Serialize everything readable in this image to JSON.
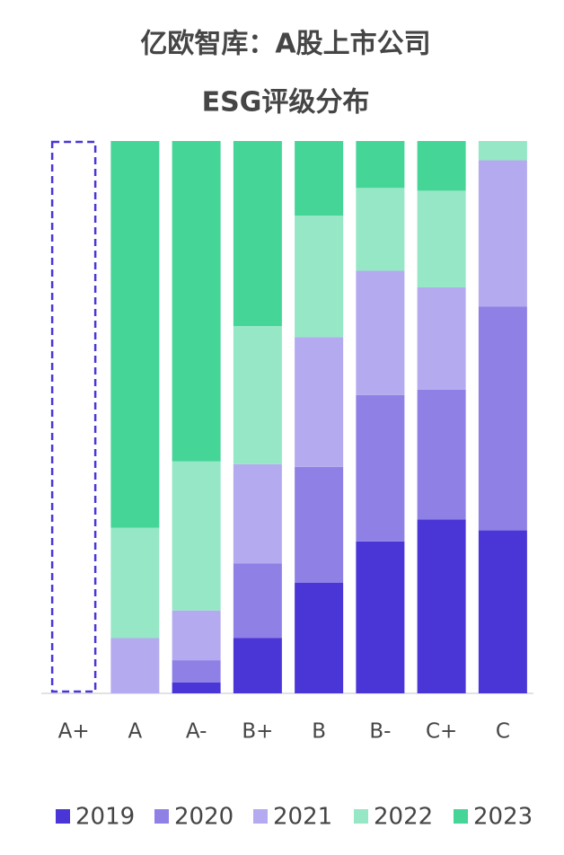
{
  "chart_data": {
    "type": "stacked_bar",
    "title": [
      "亿欧智库：A股上市公司",
      "ESG评级分布"
    ],
    "categories": [
      "A+",
      "A",
      "A-",
      "B+",
      "B",
      "B-",
      "C+",
      "C"
    ],
    "ylim": [
      0,
      100
    ],
    "series": [
      {
        "name": "2019",
        "color": "#4a36d6",
        "values": [
          null,
          0,
          2,
          10,
          20,
          27.5,
          31.5,
          29.5
        ]
      },
      {
        "name": "2020",
        "color": "#8f80e6",
        "values": [
          null,
          0,
          4,
          13.5,
          21,
          26.5,
          23.5,
          40.5
        ]
      },
      {
        "name": "2021",
        "color": "#b4aaef",
        "values": [
          null,
          10,
          9,
          18,
          23.5,
          22.5,
          18.5,
          26.5
        ]
      },
      {
        "name": "2022",
        "color": "#95e7c6",
        "values": [
          null,
          20,
          27,
          25,
          22,
          15,
          17.5,
          3.5
        ]
      },
      {
        "name": "2023",
        "color": "#44d597",
        "values": [
          null,
          70,
          58,
          33.5,
          13.5,
          8.5,
          9,
          0
        ]
      }
    ]
  }
}
